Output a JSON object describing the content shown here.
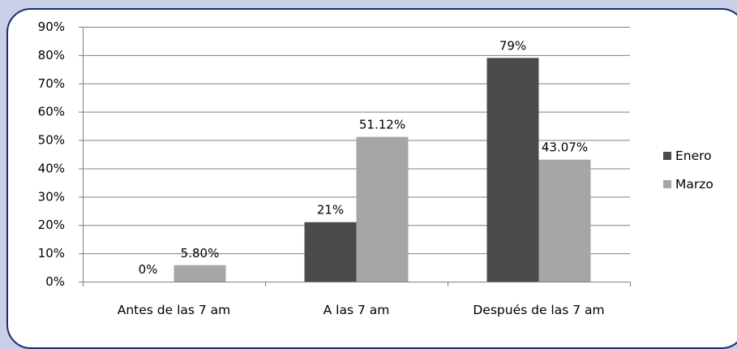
{
  "chart_data": {
    "type": "bar",
    "categories": [
      "Antes de las 7 am",
      "A las 7 am",
      "Después de las 7 am"
    ],
    "series": [
      {
        "name": "Enero",
        "values": [
          0,
          21,
          79
        ],
        "labels": [
          "0%",
          "21%",
          "79%"
        ],
        "color": "#4b4b4b"
      },
      {
        "name": "Marzo",
        "values": [
          5.8,
          51.12,
          43.07
        ],
        "labels": [
          "5.80%",
          "51.12%",
          "43.07%"
        ],
        "color": "#a6a6a6"
      }
    ],
    "yticks": [
      0,
      10,
      20,
      30,
      40,
      50,
      60,
      70,
      80,
      90
    ],
    "ytick_labels": [
      "0%",
      "10%",
      "20%",
      "30%",
      "40%",
      "50%",
      "60%",
      "70%",
      "80%",
      "90%"
    ],
    "ylim": [
      0,
      90
    ],
    "grid": "horizontal",
    "legend_position": "right"
  },
  "style": {
    "background": "#c9cfe7",
    "panel_border": "#1f2c6e",
    "gridline": "#808080",
    "axis": "#808080"
  }
}
